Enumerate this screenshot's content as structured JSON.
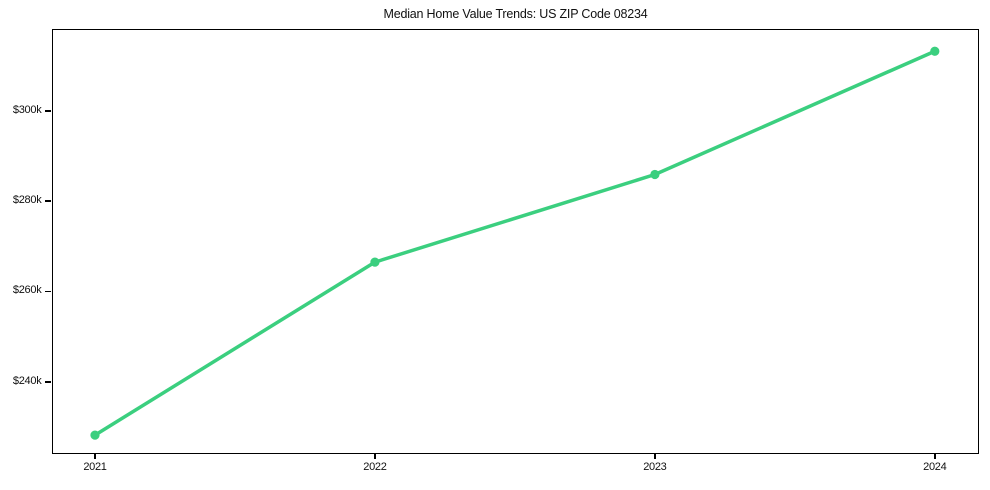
{
  "chart_data": {
    "type": "line",
    "title": "Median Home Value Trends: US ZIP Code 08234",
    "xlabel": "",
    "ylabel": "",
    "x": [
      2021,
      2022,
      2023,
      2024
    ],
    "series": [
      {
        "name": "Median Home Value",
        "values": [
          228200,
          266500,
          285900,
          313200
        ]
      }
    ],
    "x_tick_labels": [
      "2021",
      "2022",
      "2023",
      "2024"
    ],
    "y_ticks": [
      240000,
      260000,
      280000,
      300000
    ],
    "y_tick_labels": [
      "$240k",
      "$260k",
      "$280k",
      "$300k"
    ],
    "xlim": [
      2020.85,
      2024.15
    ],
    "ylim": [
      224500,
      317900
    ],
    "grid": false,
    "legend": false,
    "line_color": "#3bcf7f",
    "marker": "circle",
    "line_width": 3.5,
    "marker_radius": 4.6,
    "spine_color": "#000000",
    "background_color": "#ffffff"
  }
}
